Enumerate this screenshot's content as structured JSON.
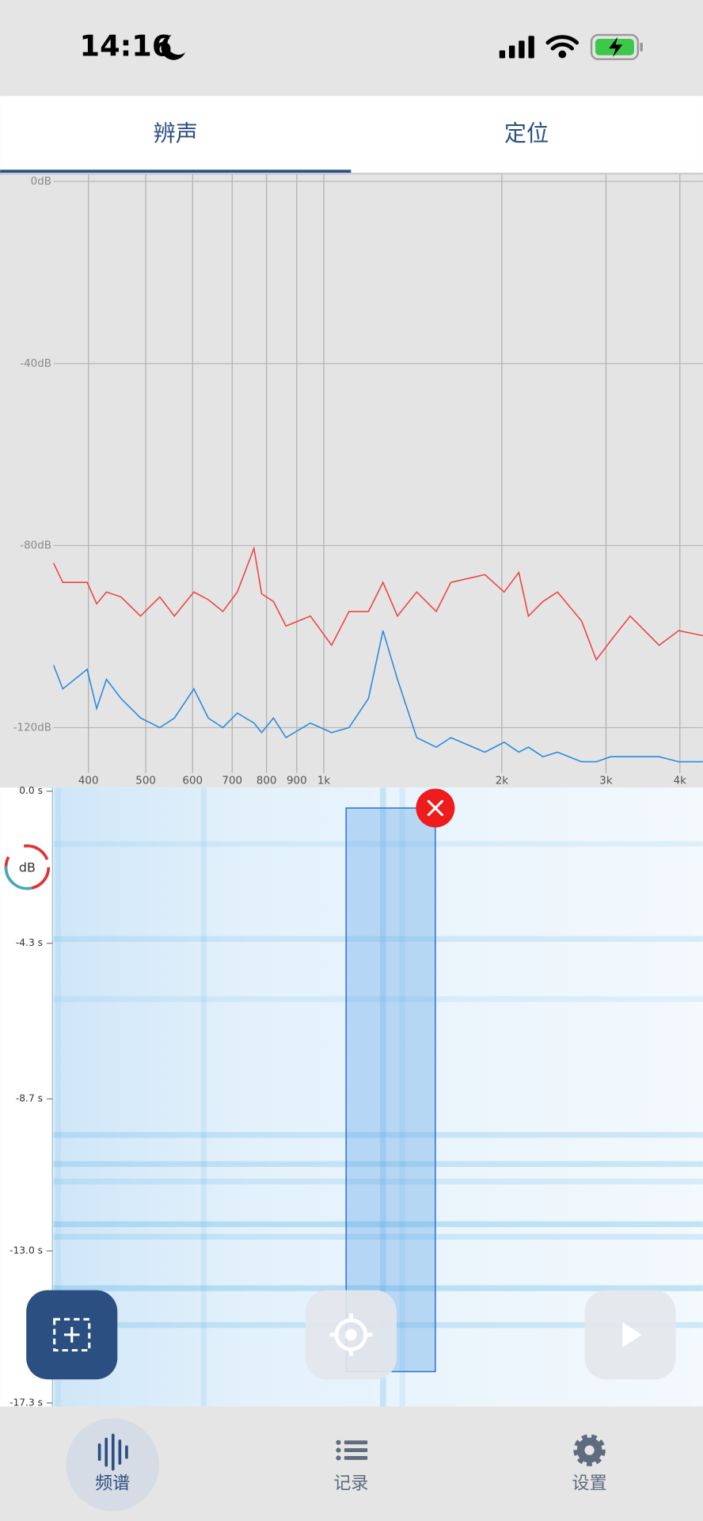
{
  "status_bar": {
    "time": "14:16"
  },
  "tabs": [
    {
      "label": "辨声",
      "active": true
    },
    {
      "label": "定位",
      "active": false
    }
  ],
  "spectrum": {
    "type": "line",
    "log_x": true,
    "grid": true,
    "x": [
      349,
      362,
      398,
      413,
      429,
      454,
      490,
      528,
      559,
      603,
      638,
      675,
      714,
      762,
      785,
      822,
      863,
      949,
      1031,
      1103,
      1190,
      1259,
      1332,
      1436,
      1549,
      1640,
      1872,
      2018,
      2137,
      2218,
      2347,
      2484,
      2729,
      2889,
      3056,
      3297,
      3690,
      3981,
      4375
    ],
    "xlim": [
      349,
      4375
    ],
    "xticks": [
      400,
      500,
      600,
      700,
      800,
      900,
      {
        "value": 1000,
        "label": "1k"
      },
      {
        "value": 2000,
        "label": "2k"
      },
      {
        "value": 3000,
        "label": "3k"
      },
      {
        "value": 4000,
        "label": "4k"
      }
    ],
    "ylim": [
      -130,
      1.5
    ],
    "yticks": [
      {
        "value": 0,
        "label": "0dB"
      },
      {
        "value": -40,
        "label": "-40dB"
      },
      {
        "value": -80,
        "label": "-80dB"
      },
      {
        "value": -120,
        "label": "-120dB"
      }
    ],
    "series": [
      {
        "color": "#ef4545",
        "values": [
          -83.8,
          -88.1,
          -88.1,
          -92.8,
          -90.2,
          -91.3,
          -95.5,
          -91.3,
          -95.5,
          -90.2,
          -91.9,
          -94.5,
          -90.2,
          -80.6,
          -90.6,
          -92.3,
          -97.7,
          -95.5,
          -101.9,
          -94.5,
          -94.5,
          -88.1,
          -95.5,
          -90.2,
          -94.5,
          -88.1,
          -86.4,
          -90.2,
          -85.9,
          -95.5,
          -92.3,
          -90.2,
          -96.6,
          -105.1,
          -100.9,
          -95.5,
          -101.9,
          -98.7,
          -99.8
        ]
      },
      {
        "color": "#2a8be0",
        "values": [
          -106.2,
          -111.5,
          -107.2,
          -115.8,
          -109.4,
          -113.6,
          -117.9,
          -120,
          -117.9,
          -111.5,
          -117.9,
          -120,
          -116.8,
          -119,
          -121.1,
          -117.9,
          -122.2,
          -119,
          -121.1,
          -120,
          -113.6,
          -98.7,
          -109.4,
          -122.2,
          -124.3,
          -122.2,
          -125.4,
          -123.2,
          -125.4,
          -124.3,
          -126.4,
          -125.4,
          -127.5,
          -127.5,
          -126.4,
          -126.4,
          -126.4,
          -127.5,
          -127.5
        ]
      }
    ]
  },
  "spectrogram": {
    "ylim": [
      0.1,
      -17.4
    ],
    "yticks": [
      {
        "value": 0,
        "label": "0.0 s"
      },
      {
        "value": -4.3,
        "label": "-4.3 s"
      },
      {
        "value": -8.7,
        "label": "-8.7 s"
      },
      {
        "value": -13.0,
        "label": "-13.0 s"
      },
      {
        "value": -17.3,
        "label": "-17.3 s"
      }
    ],
    "db_button": "dB"
  },
  "nav": [
    {
      "label": "频谱",
      "active": true
    },
    {
      "label": "记录",
      "active": false
    },
    {
      "label": "设置",
      "active": false
    }
  ]
}
